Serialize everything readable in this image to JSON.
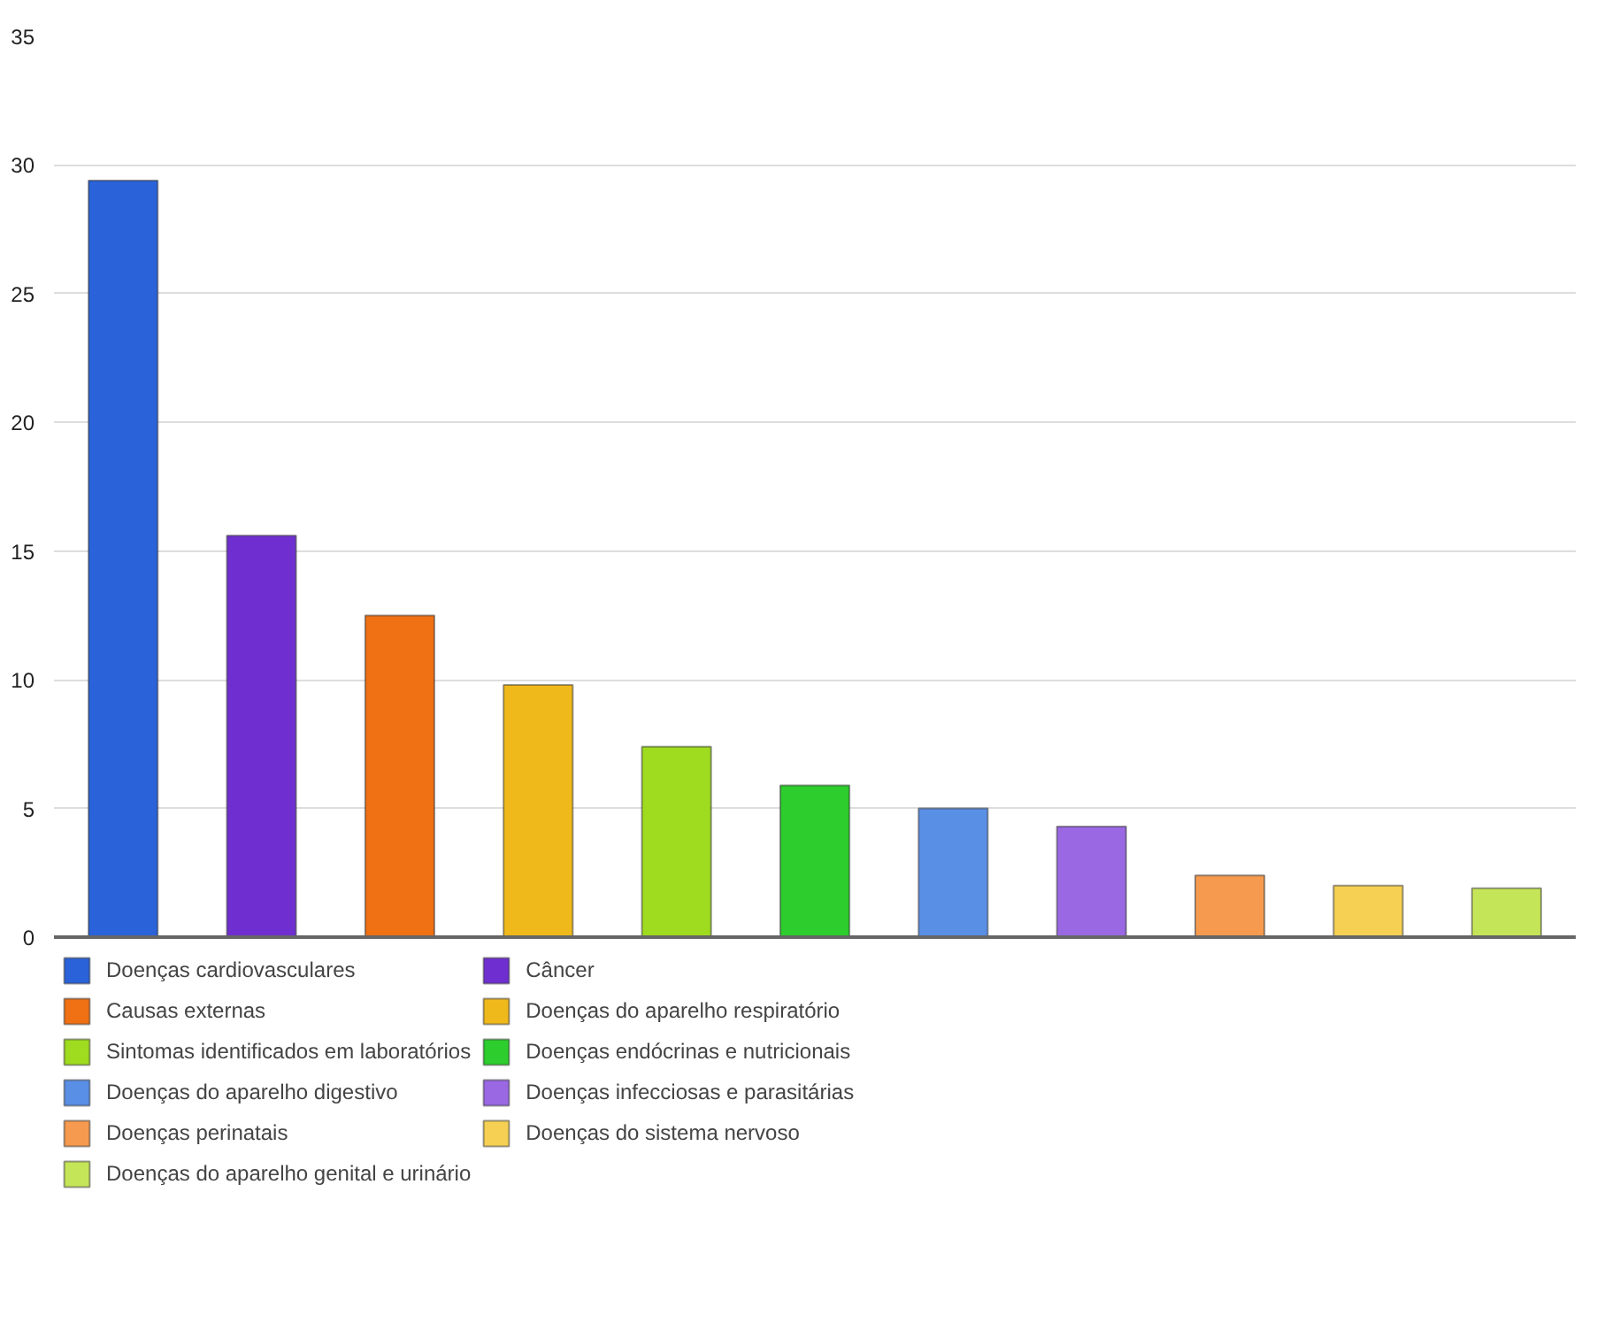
{
  "chart_data": {
    "type": "bar",
    "categories": [
      null,
      null,
      null,
      null,
      null,
      null,
      null,
      null,
      null,
      null,
      null
    ],
    "series": [
      {
        "name": "Doenças cardiovasculares",
        "color": "#2a62d9",
        "values": [
          29.4,
          null,
          null,
          null,
          null,
          null,
          null,
          null,
          null,
          null,
          null
        ]
      },
      {
        "name": "Câncer",
        "color": "#6f2fd0",
        "values": [
          null,
          15.6,
          null,
          null,
          null,
          null,
          null,
          null,
          null,
          null,
          null
        ]
      },
      {
        "name": "Causas externas",
        "color": "#f07014",
        "values": [
          null,
          null,
          12.5,
          null,
          null,
          null,
          null,
          null,
          null,
          null,
          null
        ]
      },
      {
        "name": "Doenças do aparelho respiratório",
        "color": "#f0b91b",
        "values": [
          null,
          null,
          null,
          9.8,
          null,
          null,
          null,
          null,
          null,
          null,
          null
        ]
      },
      {
        "name": "Sintomas identificados em laboratórios",
        "color": "#9fdb1f",
        "values": [
          null,
          null,
          null,
          null,
          7.4,
          null,
          null,
          null,
          null,
          null,
          null
        ]
      },
      {
        "name": "Doenças endócrinas e nutricionais",
        "color": "#2ccd2c",
        "values": [
          null,
          null,
          null,
          null,
          null,
          5.9,
          null,
          null,
          null,
          null,
          null
        ]
      },
      {
        "name": "Doenças do aparelho digestivo",
        "color": "#5a8fe6",
        "values": [
          null,
          null,
          null,
          null,
          null,
          null,
          5.0,
          null,
          null,
          null,
          null
        ]
      },
      {
        "name": "Doenças infecciosas e parasitárias",
        "color": "#9a68e3",
        "values": [
          null,
          null,
          null,
          null,
          null,
          null,
          null,
          4.3,
          null,
          null,
          null
        ]
      },
      {
        "name": "Doenças perinatais",
        "color": "#f59a4e",
        "values": [
          null,
          null,
          null,
          null,
          null,
          null,
          null,
          null,
          2.4,
          null,
          null
        ]
      },
      {
        "name": "Doenças do sistema nervoso",
        "color": "#f5d053",
        "values": [
          null,
          null,
          null,
          null,
          null,
          null,
          null,
          null,
          null,
          2.0,
          null
        ]
      },
      {
        "name": "Doenças do aparelho genital e urinário",
        "color": "#c5e558",
        "values": [
          null,
          null,
          null,
          null,
          null,
          null,
          null,
          null,
          null,
          null,
          1.9
        ]
      }
    ],
    "ylim": [
      0,
      35
    ],
    "yticks": [
      0,
      5,
      10,
      15,
      20,
      25,
      30,
      35
    ],
    "grid": "y",
    "legend": "bottom"
  }
}
